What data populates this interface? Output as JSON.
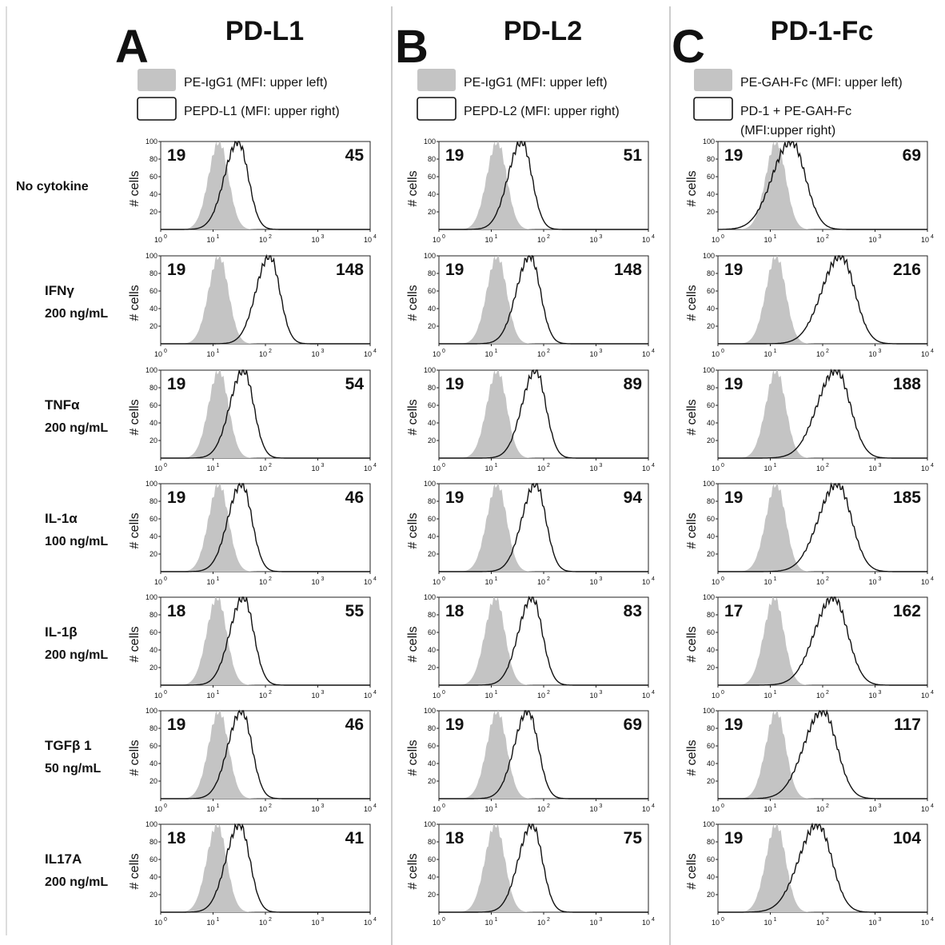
{
  "panels": [
    {
      "letter": "A",
      "title": "PD-L1",
      "legend": {
        "shaded_label": "PE-IgG1 (MFI: upper left)",
        "open_label": [
          "PEPD-L1 (MFI: upper right)"
        ]
      }
    },
    {
      "letter": "B",
      "title": "PD-L2",
      "legend": {
        "shaded_label": "PE-IgG1 (MFI: upper left)",
        "open_label": [
          "PEPD-L2 (MFI: upper right)"
        ]
      }
    },
    {
      "letter": "C",
      "title": "PD-1-Fc",
      "legend": {
        "shaded_label": "PE-GAH-Fc (MFI: upper left)",
        "open_label": [
          "PD-1 + PE-GAH-Fc",
          "(MFI:upper right)"
        ]
      }
    }
  ],
  "rows": [
    {
      "label": [
        "No cytokine"
      ]
    },
    {
      "label": [
        "IFNγ",
        "200 ng/mL"
      ]
    },
    {
      "label": [
        "TNFα",
        "200 ng/mL"
      ]
    },
    {
      "label": [
        "IL-1α",
        "100 ng/mL"
      ]
    },
    {
      "label": [
        "IL-1β",
        "200 ng/mL"
      ]
    },
    {
      "label": [
        "TGFβ 1",
        "50 ng/mL"
      ]
    },
    {
      "label": [
        "IL17A",
        "200 ng/mL"
      ]
    }
  ],
  "axes": {
    "ylabel": "# cells",
    "yticks": [
      "100",
      "80",
      "60",
      "40",
      "20"
    ],
    "xticks": [
      {
        "base": "10",
        "exp": "0"
      },
      {
        "base": "10",
        "exp": "1"
      },
      {
        "base": "10",
        "exp": "2"
      },
      {
        "base": "10",
        "exp": "3"
      },
      {
        "base": "10",
        "exp": "4"
      }
    ]
  },
  "colors": {
    "shaded": "#c4c4c4",
    "open": "#111111"
  },
  "chart_data": {
    "type": "histogram-grid",
    "x_scale": "log",
    "xlim": [
      1,
      10000
    ],
    "ylim": [
      0,
      100
    ],
    "ylabel": "# cells",
    "cells": [
      [
        {
          "left": 19,
          "right": 45,
          "peak_ctrl": 13,
          "peak_stain": 30
        },
        {
          "left": 19,
          "right": 51,
          "peak_ctrl": 13,
          "peak_stain": 38
        },
        {
          "left": 19,
          "right": 69,
          "peak_ctrl": 13,
          "peak_stain": 25
        }
      ],
      [
        {
          "left": 19,
          "right": 148,
          "peak_ctrl": 13,
          "peak_stain": 120
        },
        {
          "left": 19,
          "right": 148,
          "peak_ctrl": 13,
          "peak_stain": 55
        },
        {
          "left": 19,
          "right": 216,
          "peak_ctrl": 13,
          "peak_stain": 220
        }
      ],
      [
        {
          "left": 19,
          "right": 54,
          "peak_ctrl": 13,
          "peak_stain": 38
        },
        {
          "left": 19,
          "right": 89,
          "peak_ctrl": 13,
          "peak_stain": 70
        },
        {
          "left": 19,
          "right": 188,
          "peak_ctrl": 13,
          "peak_stain": 180
        }
      ],
      [
        {
          "left": 19,
          "right": 46,
          "peak_ctrl": 13,
          "peak_stain": 35
        },
        {
          "left": 19,
          "right": 94,
          "peak_ctrl": 13,
          "peak_stain": 70
        },
        {
          "left": 19,
          "right": 185,
          "peak_ctrl": 13,
          "peak_stain": 190
        }
      ],
      [
        {
          "left": 18,
          "right": 55,
          "peak_ctrl": 12,
          "peak_stain": 38
        },
        {
          "left": 18,
          "right": 83,
          "peak_ctrl": 12,
          "peak_stain": 60
        },
        {
          "left": 17,
          "right": 162,
          "peak_ctrl": 12,
          "peak_stain": 160
        }
      ],
      [
        {
          "left": 19,
          "right": 46,
          "peak_ctrl": 13,
          "peak_stain": 35
        },
        {
          "left": 19,
          "right": 69,
          "peak_ctrl": 13,
          "peak_stain": 50
        },
        {
          "left": 19,
          "right": 117,
          "peak_ctrl": 13,
          "peak_stain": 100
        }
      ],
      [
        {
          "left": 18,
          "right": 41,
          "peak_ctrl": 12,
          "peak_stain": 32
        },
        {
          "left": 18,
          "right": 75,
          "peak_ctrl": 12,
          "peak_stain": 60
        },
        {
          "left": 19,
          "right": 104,
          "peak_ctrl": 13,
          "peak_stain": 80
        }
      ]
    ]
  }
}
